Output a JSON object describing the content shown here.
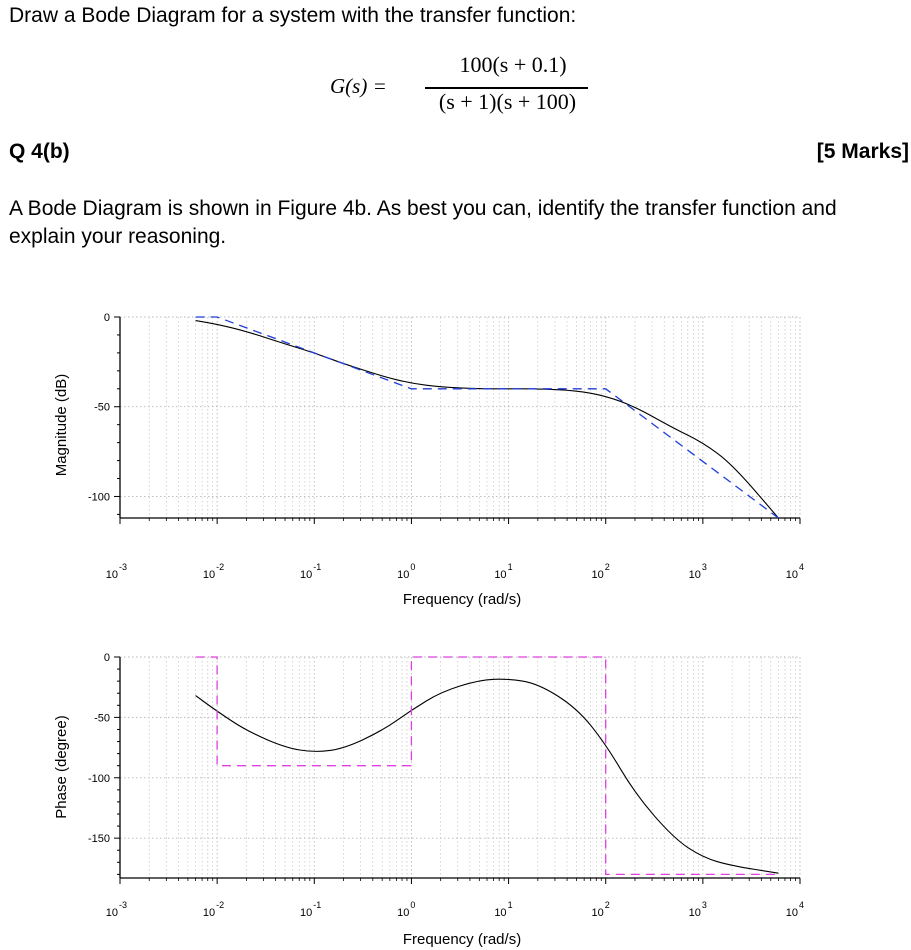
{
  "intro": "Draw a Bode Diagram for a system with the transfer function:",
  "equation": {
    "lhs": "G(s) =",
    "numerator": "100(s + 0.1)",
    "denominator": "(s + 1)(s + 100)"
  },
  "question": {
    "label": "Q 4(b)",
    "marks": "[5 Marks]",
    "text": "A Bode Diagram is shown in Figure 4b. As best you can, identify the transfer function and explain your reasoning."
  },
  "colors": {
    "actual": "#000000",
    "asymptote_mag": "#1f3fd8",
    "asymptote_phase": "#e040e0",
    "grid": "#b8b8b8"
  },
  "chart_data": [
    {
      "type": "line",
      "title": "",
      "xlabel": "Frequency (rad/s)",
      "ylabel": "Magnitude (dB)",
      "xscale": "log",
      "xlim": [
        0.001,
        10000
      ],
      "ylim": [
        -112,
        0
      ],
      "xticks": [
        {
          "base": "10",
          "exp": "-3"
        },
        {
          "base": "10",
          "exp": "-2"
        },
        {
          "base": "10",
          "exp": "-1"
        },
        {
          "base": "10",
          "exp": "0"
        },
        {
          "base": "10",
          "exp": "1"
        },
        {
          "base": "10",
          "exp": "2"
        },
        {
          "base": "10",
          "exp": "3"
        },
        {
          "base": "10",
          "exp": "4"
        }
      ],
      "yticks": [
        "0",
        "-50",
        "-100"
      ],
      "ytick_values": [
        0,
        -50,
        -100
      ],
      "grid": true,
      "series": [
        {
          "style": "solid",
          "color": "#000000",
          "x": [
            0.006,
            0.01,
            0.02,
            0.05,
            0.1,
            0.2,
            0.5,
            1,
            2,
            5,
            10,
            20,
            50,
            100,
            200,
            500,
            1000,
            2000,
            6000
          ],
          "y": [
            -2,
            -4,
            -8,
            -15,
            -20,
            -26,
            -33,
            -37,
            -39,
            -40,
            -40,
            -40,
            -41,
            -44,
            -50,
            -62,
            -70,
            -82,
            -112
          ]
        },
        {
          "style": "dashed",
          "color": "#1f3fd8",
          "x": [
            0.006,
            0.01,
            1,
            100,
            6000
          ],
          "y": [
            0,
            0,
            -40,
            -40,
            -112
          ]
        }
      ]
    },
    {
      "type": "line",
      "title": "",
      "xlabel": "Frequency (rad/s)",
      "ylabel": "Phase (degree)",
      "xscale": "log",
      "xlim": [
        0.001,
        10000
      ],
      "ylim": [
        -183,
        0
      ],
      "xticks": [
        {
          "base": "10",
          "exp": "-3"
        },
        {
          "base": "10",
          "exp": "-2"
        },
        {
          "base": "10",
          "exp": "-1"
        },
        {
          "base": "10",
          "exp": "0"
        },
        {
          "base": "10",
          "exp": "1"
        },
        {
          "base": "10",
          "exp": "2"
        },
        {
          "base": "10",
          "exp": "3"
        },
        {
          "base": "10",
          "exp": "4"
        }
      ],
      "yticks": [
        "0",
        "-50",
        "-100",
        "-150"
      ],
      "ytick_values": [
        0,
        -50,
        -100,
        -150
      ],
      "grid": true,
      "series": [
        {
          "style": "solid",
          "color": "#000000",
          "x": [
            0.006,
            0.01,
            0.02,
            0.05,
            0.1,
            0.2,
            0.5,
            1,
            2,
            5,
            10,
            20,
            50,
            100,
            200,
            500,
            1000,
            2000,
            6000
          ],
          "y": [
            -32,
            -45,
            -61,
            -75,
            -79,
            -76,
            -61,
            -44,
            -29,
            -19,
            -18,
            -22,
            -42,
            -72,
            -113,
            -150,
            -166,
            -173,
            -179
          ]
        },
        {
          "style": "dashed",
          "color": "#e040e0",
          "x": [
            0.006,
            0.01,
            0.01,
            1,
            1,
            100,
            100,
            6000
          ],
          "y": [
            0,
            0,
            -90,
            -90,
            0,
            0,
            -180,
            -180
          ]
        }
      ]
    }
  ]
}
